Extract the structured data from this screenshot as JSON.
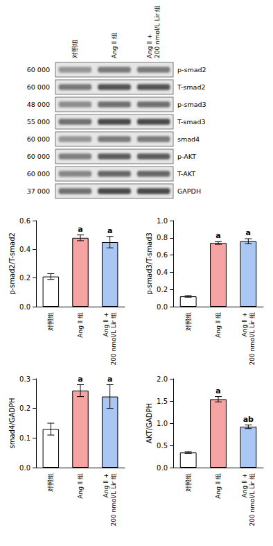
{
  "blot": {
    "lanes": [
      "对照组",
      "Ang Ⅱ 组",
      "Ang Ⅱ +\n200 nmol/L Lir 组"
    ],
    "rows": [
      {
        "mw": "60 000",
        "label": "p-smad2"
      },
      {
        "mw": "60 000",
        "label": "T-smad2"
      },
      {
        "mw": "48 000",
        "label": "p-smad3"
      },
      {
        "mw": "55 000",
        "label": "T-smad3"
      },
      {
        "mw": "60 000",
        "label": "smad4"
      },
      {
        "mw": "60 000",
        "label": "p-AKT"
      },
      {
        "mw": "60 000",
        "label": "T-AKT"
      },
      {
        "mw": "37 000",
        "label": "GAPDH"
      }
    ]
  },
  "chart_data": [
    {
      "type": "bar",
      "y_label": "p-smad2/T-smad2",
      "categories": [
        "对照组",
        "Ang Ⅱ 组",
        "Ang Ⅱ +\n200 nmol/L Lir 组"
      ],
      "values": [
        0.21,
        0.48,
        0.45
      ],
      "errors": [
        0.02,
        0.02,
        0.04
      ],
      "annotations": [
        null,
        "a",
        "a"
      ],
      "colors": [
        "#ffffff",
        "#f5a3a3",
        "#a9c7f2"
      ],
      "ylim": [
        0,
        0.6
      ],
      "yticks": [
        {
          "value": 0,
          "label": "0.0"
        },
        0.2,
        0.4,
        0.6
      ],
      "grid": false
    },
    {
      "type": "bar",
      "y_label": "p-smad3/T-smad3",
      "categories": [
        "对照组",
        "Ang Ⅱ 组",
        "Ang Ⅱ +\n200 nmol/L Lir 组"
      ],
      "values": [
        0.12,
        0.74,
        0.76
      ],
      "errors": [
        0.01,
        0.015,
        0.03
      ],
      "annotations": [
        null,
        "a",
        "a"
      ],
      "colors": [
        "#ffffff",
        "#f5a3a3",
        "#a9c7f2"
      ],
      "ylim": [
        0,
        1.0
      ],
      "yticks": [
        {
          "value": 0,
          "label": "0.0"
        },
        0.2,
        0.4,
        0.6,
        0.8,
        {
          "value": 1.0,
          "label": "1.0"
        }
      ],
      "grid": false
    },
    {
      "type": "bar",
      "y_label": "smad4/GADPH",
      "categories": [
        "对照组",
        "Ang Ⅱ 组",
        "Ang Ⅱ +\n200 nmol/L Lir 组"
      ],
      "values": [
        0.13,
        0.26,
        0.24
      ],
      "errors": [
        0.02,
        0.02,
        0.04
      ],
      "annotations": [
        null,
        "a",
        "a"
      ],
      "colors": [
        "#ffffff",
        "#f5a3a3",
        "#a9c7f2"
      ],
      "ylim": [
        0,
        0.3
      ],
      "yticks": [
        {
          "value": 0,
          "label": "0.0"
        },
        0.1,
        0.2,
        0.3
      ],
      "grid": false
    },
    {
      "type": "bar",
      "y_label": "AKT/GADPH",
      "categories": [
        "对照组",
        "Ang Ⅱ 组",
        "Ang Ⅱ +\n200 nmol/L Lir 组"
      ],
      "values": [
        0.34,
        1.54,
        0.92
      ],
      "errors": [
        0.02,
        0.06,
        0.04
      ],
      "annotations": [
        null,
        "a",
        "ab"
      ],
      "colors": [
        "#ffffff",
        "#f5a3a3",
        "#a9c7f2"
      ],
      "ylim": [
        0,
        2.0
      ],
      "yticks": [
        {
          "value": 0,
          "label": "0.0"
        },
        0.5,
        {
          "value": 1.0,
          "label": "1.0"
        },
        1.5,
        {
          "value": 2.0,
          "label": "2.0"
        }
      ],
      "grid": false
    }
  ]
}
